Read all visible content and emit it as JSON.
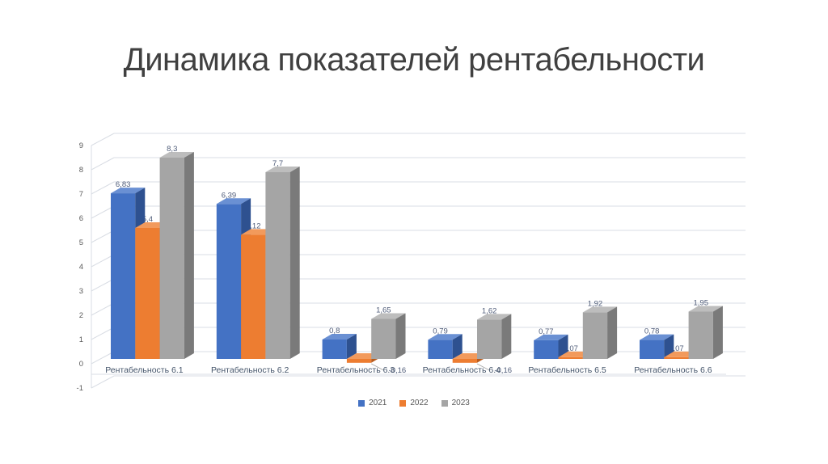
{
  "chart_data": {
    "type": "bar",
    "projection": "3d-column",
    "title": "Динамика показателей рентабельности",
    "categories": [
      "Рентабельность 6.1",
      "Рентабельность 6.2",
      "Рентабельность 6.3",
      "Рентабельность 6.4",
      "Рентабельность 6.5",
      "Рентабельность 6.6"
    ],
    "series": [
      {
        "name": "2021",
        "color": "#4472C4",
        "values": [
          6.83,
          6.39,
          0.8,
          0.79,
          0.77,
          0.78
        ],
        "labels": [
          "6,83",
          "6,39",
          "0,8",
          "0,79",
          "0,77",
          "0,78"
        ]
      },
      {
        "name": "2022",
        "color": "#ED7D31",
        "values": [
          5.4,
          5.12,
          -0.16,
          -0.16,
          0.07,
          0.07
        ],
        "labels": [
          "5,4",
          "5,12",
          "-0,16",
          "-0,16",
          "0,07",
          "0,07"
        ]
      },
      {
        "name": "2023",
        "color": "#A5A5A5",
        "values": [
          8.3,
          7.7,
          1.65,
          1.62,
          1.92,
          1.95
        ],
        "labels": [
          "8,3",
          "7,7",
          "1,65",
          "1,62",
          "1,92",
          "1,95"
        ]
      }
    ],
    "ylim": [
      -1,
      9
    ],
    "yticks": [
      -1,
      0,
      1,
      2,
      3,
      4,
      5,
      6,
      7,
      8,
      9
    ],
    "gridlines": true,
    "legend_position": "bottom"
  },
  "colors": {
    "background": "#FFFFFF",
    "title_text": "#404040",
    "series_faces": [
      {
        "front": "#4472C4",
        "top": "#6A90D3",
        "side": "#2E5190"
      },
      {
        "front": "#ED7D31",
        "top": "#F29A5C",
        "side": "#B85C1E"
      },
      {
        "front": "#A5A5A5",
        "top": "#BDBDBD",
        "side": "#7A7A7A"
      }
    ],
    "gridline": "#D9DDE4",
    "tick_text": "#595959",
    "category_text": "#44546A",
    "data_label_text": "#4E5B78",
    "leader_line": "#A6A6A6"
  }
}
